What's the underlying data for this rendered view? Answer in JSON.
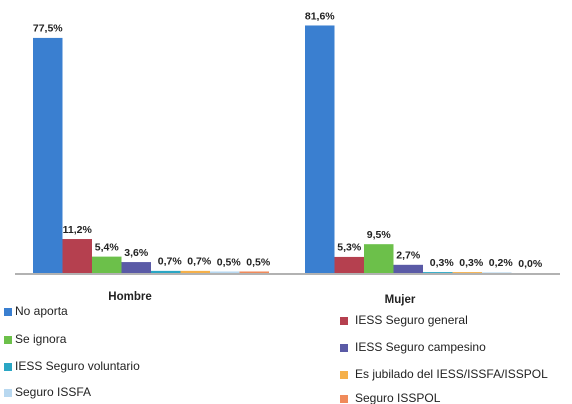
{
  "chart_data": {
    "type": "bar",
    "categories": [
      "Hombre",
      "Mujer"
    ],
    "series": [
      {
        "name": "No aporta",
        "color": "#3a7fd0",
        "values": [
          77.5,
          81.6
        ],
        "value_labels": [
          "77,5%",
          "81,6%"
        ]
      },
      {
        "name": "IESS Seguro general",
        "color": "#b5404f",
        "values": [
          11.2,
          5.3
        ],
        "value_labels": [
          "11,2%",
          "5,3%"
        ]
      },
      {
        "name": "Se ignora",
        "color": "#6cc04a",
        "values": [
          5.4,
          9.5
        ],
        "value_labels": [
          "5,4%",
          "9,5%"
        ]
      },
      {
        "name": "IESS Seguro campesino",
        "color": "#5a5aa6",
        "values": [
          3.6,
          2.7
        ],
        "value_labels": [
          "3,6%",
          "2,7%"
        ]
      },
      {
        "name": "IESS Seguro voluntario",
        "color": "#2aa6c4",
        "values": [
          0.7,
          0.3
        ],
        "value_labels": [
          "0,7%",
          "0,3%"
        ]
      },
      {
        "name": "Es jubilado del IESS/ISSFA/ISSPOL",
        "color": "#f5b04a",
        "values": [
          0.7,
          0.3
        ],
        "value_labels": [
          "0,7%",
          "0,3%"
        ]
      },
      {
        "name": "Seguro ISSFA",
        "color": "#b8d8f0",
        "values": [
          0.5,
          0.2
        ],
        "value_labels": [
          "0,5%",
          "0,2%"
        ]
      },
      {
        "name": "Seguro ISSPOL",
        "color": "#f08a5a",
        "values": [
          0.5,
          0.0
        ],
        "value_labels": [
          "0,5%",
          "0,0%"
        ]
      }
    ],
    "ylim": [
      0,
      90
    ]
  }
}
